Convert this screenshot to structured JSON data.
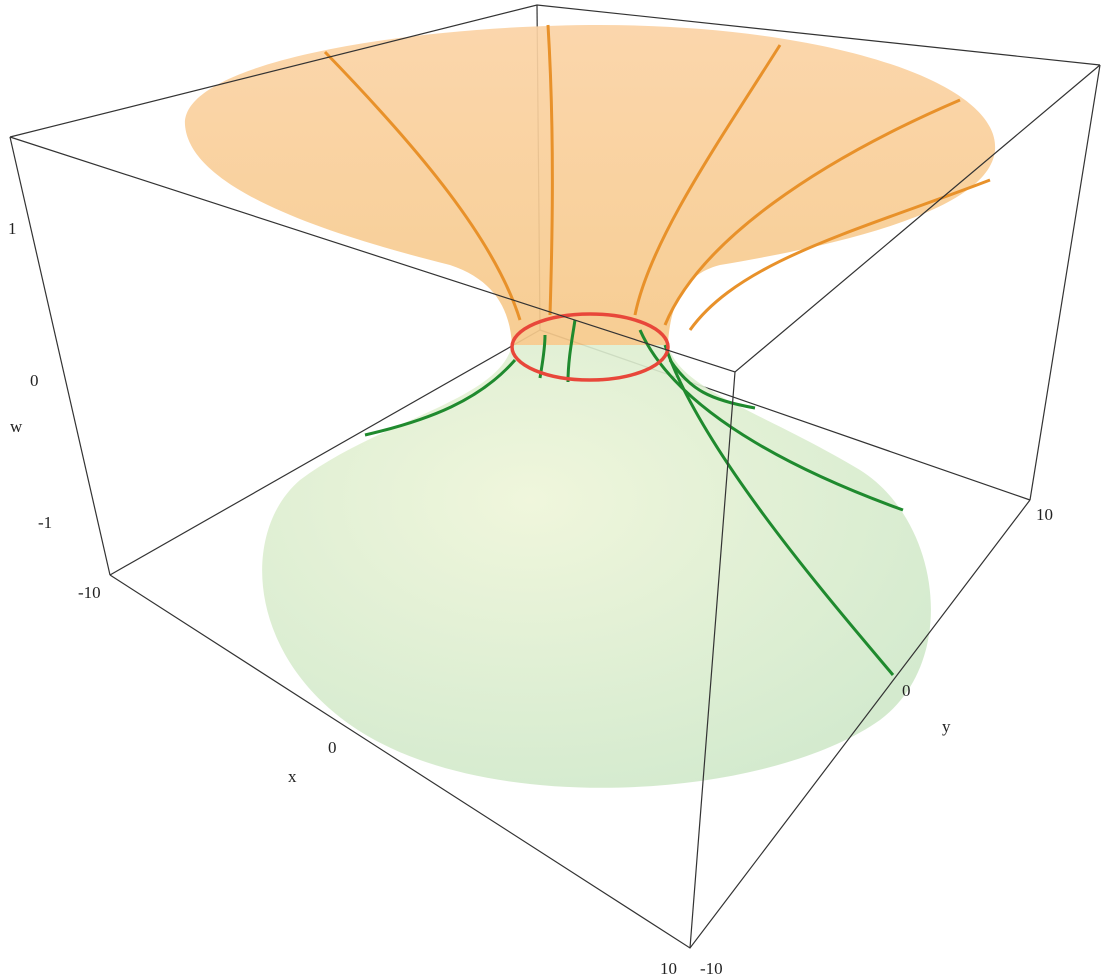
{
  "axes": {
    "x": {
      "label": "x",
      "ticks": [
        "-10",
        "0",
        "10"
      ]
    },
    "y": {
      "label": "y",
      "ticks": [
        "-10",
        "0",
        "10"
      ]
    },
    "w": {
      "label": "w",
      "ticks": [
        "1",
        "0",
        "-1"
      ]
    }
  }
}
